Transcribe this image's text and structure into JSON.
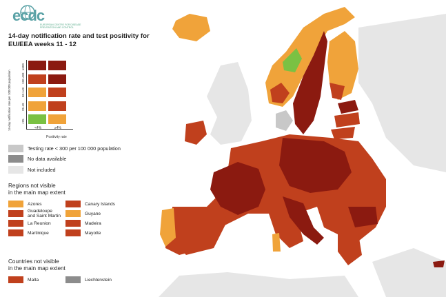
{
  "logo": {
    "text": "ecdc",
    "subtitle": "EUROPEAN CENTRE FOR DISEASE PREVENTION AND CONTROL"
  },
  "title": "14-day notification rate and test positivity for EU/EEA weeks 11 - 12",
  "colors": {
    "dark_red": "#8b1a10",
    "red": "#c0401d",
    "orange": "#f0a33a",
    "green": "#7ac143",
    "light_grey": "#c8c8c8",
    "dark_grey": "#8c8c8c",
    "not_included": "#e6e6e6",
    "sea": "#ffffff"
  },
  "matrix": {
    "y_label": "14-day notification rate per 100 000 population",
    "x_label": "Positivity rate",
    "y_ticks": [
      "≥500",
      "150-499",
      "50-149",
      "25-49",
      "<25"
    ],
    "x_ticks": [
      "<4%",
      "≥4%"
    ],
    "cells": [
      [
        "dark_red",
        "dark_red"
      ],
      [
        "red",
        "dark_red"
      ],
      [
        "orange",
        "red"
      ],
      [
        "orange",
        "red"
      ],
      [
        "green",
        "orange"
      ]
    ]
  },
  "legend": [
    {
      "label": "Testing rate < 300 per 100 000 population",
      "color": "light_grey"
    },
    {
      "label": "No data available",
      "color": "dark_grey"
    },
    {
      "label": "Not included",
      "color": "not_included"
    }
  ],
  "regions_heading": "Regions not visible\nin the main map extent",
  "regions": [
    {
      "label": "Azores",
      "color": "orange"
    },
    {
      "label": "Canary Islands",
      "color": "red"
    },
    {
      "label": "Guadeloupe\nand Saint Martin",
      "color": "red"
    },
    {
      "label": "Guyane",
      "color": "orange"
    },
    {
      "label": "La Reunion",
      "color": "red"
    },
    {
      "label": "Madeira",
      "color": "red"
    },
    {
      "label": "Martinique",
      "color": "red"
    },
    {
      "label": "Mayotte",
      "color": "red"
    }
  ],
  "countries_heading": "Countries not visible\nin the main map extent",
  "countries": [
    {
      "label": "Malta",
      "color": "red"
    },
    {
      "label": "Liechtenstein",
      "color": "dark_grey"
    }
  ]
}
